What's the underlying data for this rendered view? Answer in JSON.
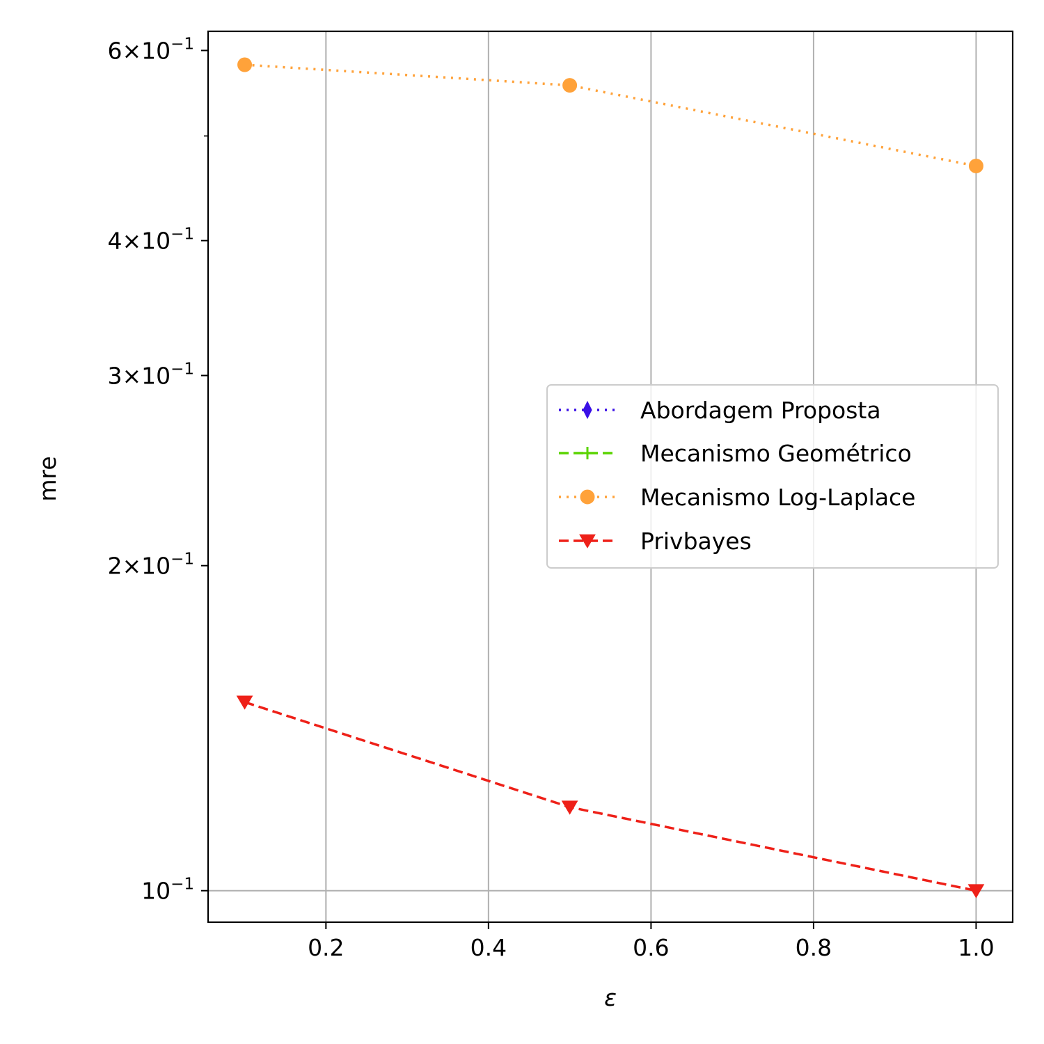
{
  "chart_data": {
    "type": "line",
    "xlabel": "ε",
    "ylabel": "mre",
    "xlim": [
      0.055,
      1.045
    ],
    "ylim": [
      0.0935,
      0.625
    ],
    "yscale": "log",
    "grid": true,
    "legend_position": "center-right",
    "x_ticks": [
      {
        "value": 0.2,
        "label": "0.2"
      },
      {
        "value": 0.4,
        "label": "0.4"
      },
      {
        "value": 0.6,
        "label": "0.6"
      },
      {
        "value": 0.8,
        "label": "0.8"
      },
      {
        "value": 1.0,
        "label": "1.0"
      }
    ],
    "y_ticks": [
      {
        "value": 0.1,
        "base": "10",
        "exp": "−1",
        "coef": ""
      },
      {
        "value": 0.2,
        "base": "10",
        "exp": "−1",
        "coef": "2×"
      },
      {
        "value": 0.3,
        "base": "10",
        "exp": "−1",
        "coef": "3×"
      },
      {
        "value": 0.4,
        "base": "10",
        "exp": "−1",
        "coef": "4×"
      },
      {
        "value": 0.6,
        "base": "10",
        "exp": "−1",
        "coef": "6×"
      }
    ],
    "y_minor_ticks": [
      0.5
    ],
    "series": [
      {
        "name": "Abordagem Proposta",
        "color": "#3a10e6",
        "dash": "dotted",
        "marker": "thin-diamond",
        "x": [],
        "y": []
      },
      {
        "name": "Mecanismo Geométrico",
        "color": "#5ad400",
        "dash": "dashed",
        "marker": "plus",
        "x": [],
        "y": []
      },
      {
        "name": "Mecanismo Log-Laplace",
        "color": "#ffa23a",
        "dash": "dotted",
        "marker": "circle",
        "x": [
          0.1,
          0.5,
          1.0
        ],
        "y": [
          0.582,
          0.557,
          0.469
        ]
      },
      {
        "name": "Privbayes",
        "color": "#ee2018",
        "dash": "dashed",
        "marker": "triangle-down",
        "x": [
          0.1,
          0.5,
          1.0
        ],
        "y": [
          0.1495,
          0.1195,
          0.1
        ]
      }
    ]
  }
}
